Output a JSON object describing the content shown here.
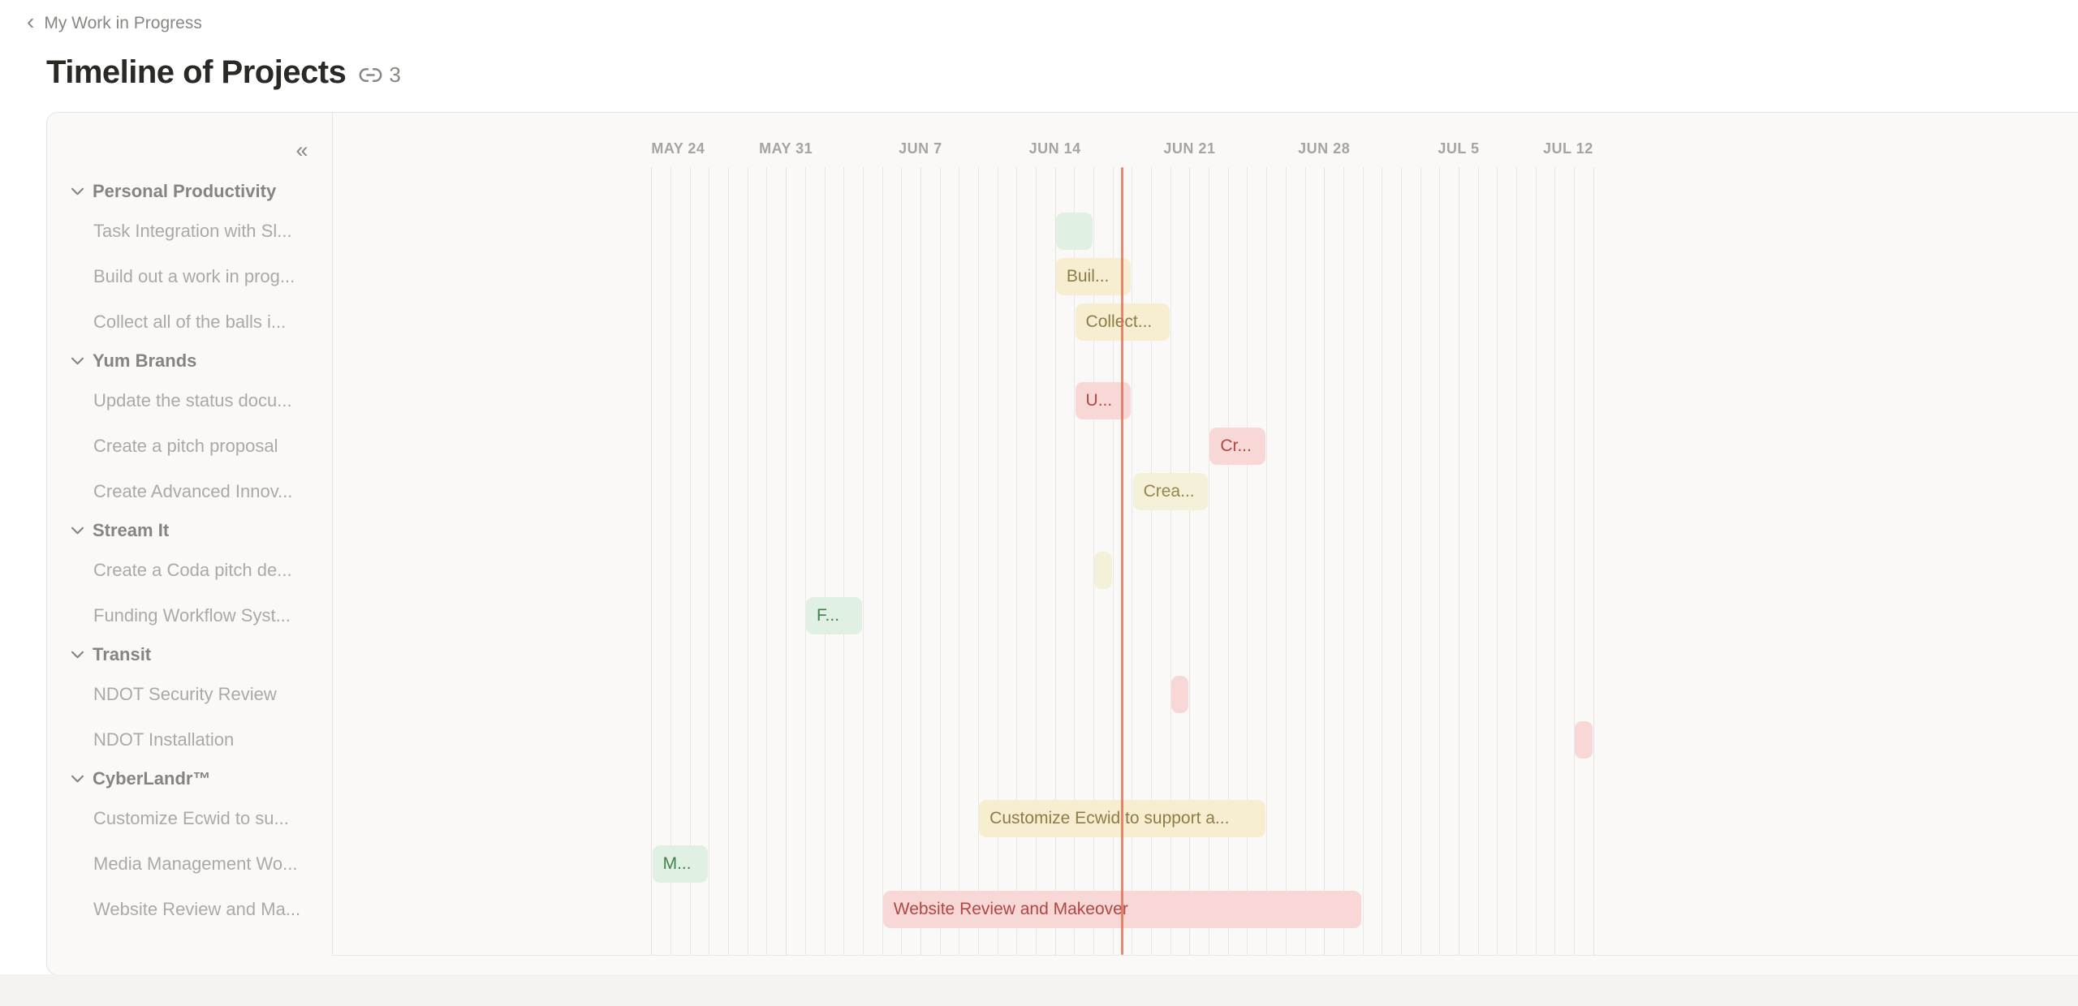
{
  "header": {
    "back_icon": "‹",
    "breadcrumb": "My Work in Progress",
    "title": "Timeline of Projects",
    "link_count": "3"
  },
  "sidebar": {
    "collapse_icon": "«"
  },
  "timeline": {
    "week_labels": [
      "MAY 24",
      "MAY 31",
      "JUN 7",
      "JUN 14",
      "JUN 21",
      "JUN 28",
      "JUL 5",
      "JUL 12"
    ],
    "days_per_week": 7,
    "total_day_lines": 50,
    "today_day_offset": 24.45
  },
  "colors": {
    "today_line": "#e2674d",
    "grid_line": "#eae8e5",
    "green_bg": "#e0f1e4",
    "green_text": "#44804a",
    "yellow_bg": "#f7eed2",
    "yellow_text": "#8e7c45",
    "paleyellow_bg": "#f5f1d8",
    "paleyellow_text": "#97854b",
    "pink_bg": "#f8d8d6",
    "pink_text": "#b04742"
  },
  "rows": [
    {
      "type": "group",
      "label": "Personal Productivity"
    },
    {
      "type": "item",
      "label": "Task Integration with Sl...",
      "bar": {
        "start": 21,
        "end": 23,
        "color": "green",
        "label": ""
      }
    },
    {
      "type": "item",
      "label": "Build out a work in prog...",
      "bar": {
        "start": 21,
        "end": 25,
        "color": "yellow",
        "label": "Buil..."
      }
    },
    {
      "type": "item",
      "label": "Collect all of the balls i...",
      "bar": {
        "start": 22,
        "end": 27,
        "color": "yellow",
        "label": "Collect..."
      }
    },
    {
      "type": "group",
      "label": "Yum Brands"
    },
    {
      "type": "item",
      "label": "Update the status docu...",
      "bar": {
        "start": 22,
        "end": 25,
        "color": "pink",
        "label": "U..."
      }
    },
    {
      "type": "item",
      "label": "Create a pitch proposal",
      "bar": {
        "start": 29,
        "end": 32,
        "color": "pink",
        "label": "Cr..."
      }
    },
    {
      "type": "item",
      "label": "Create Advanced Innov...",
      "bar": {
        "start": 25,
        "end": 29,
        "color": "paleyellow",
        "label": "Crea..."
      }
    },
    {
      "type": "group",
      "label": "Stream It"
    },
    {
      "type": "item",
      "label": "Create a Coda pitch de...",
      "bar": {
        "start": 23,
        "end": 24,
        "color": "paleyellow",
        "label": ""
      }
    },
    {
      "type": "item",
      "label": "Funding Workflow Syst...",
      "bar": {
        "start": 8,
        "end": 11,
        "color": "green",
        "label": "F..."
      }
    },
    {
      "type": "group",
      "label": "Transit"
    },
    {
      "type": "item",
      "label": "NDOT Security Review",
      "bar": {
        "start": 27,
        "end": 28,
        "color": "pink",
        "label": ""
      }
    },
    {
      "type": "item",
      "label": "NDOT Installation",
      "bar": {
        "start": 48,
        "end": 49,
        "color": "pink",
        "label": ""
      }
    },
    {
      "type": "group",
      "label": "CyberLandr™"
    },
    {
      "type": "item",
      "label": "Customize Ecwid to su...",
      "bar": {
        "start": 17,
        "end": 32,
        "color": "yellow",
        "label": "Customize Ecwid to support a..."
      }
    },
    {
      "type": "item",
      "label": "Media Management Wo...",
      "bar": {
        "start": 0,
        "end": 3,
        "color": "green",
        "label": "M..."
      }
    },
    {
      "type": "item",
      "label": "Website Review and Ma...",
      "bar": {
        "start": 12,
        "end": 37,
        "color": "pink",
        "label": "Website Review and Makeover"
      }
    }
  ]
}
